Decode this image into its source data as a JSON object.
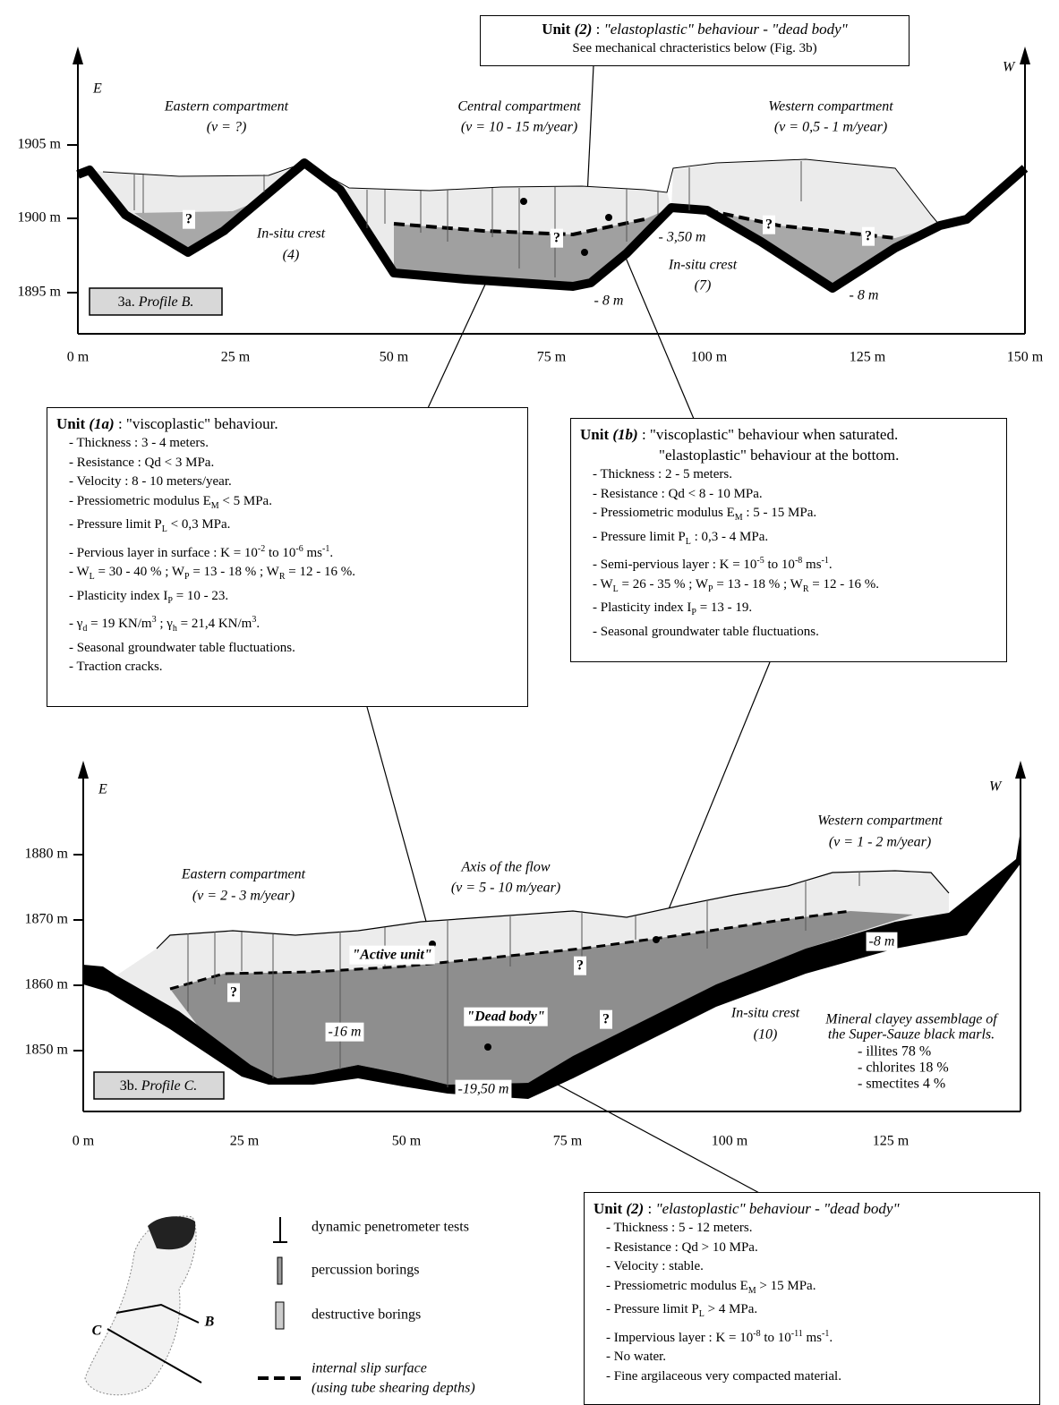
{
  "callout_top": {
    "title": [
      [
        {
          "b": "Unit "
        },
        {
          "bi": "(2)"
        },
        " : ",
        {
          "i": "\"elastoplastic\" behaviour - \"dead body\""
        }
      ]
    ],
    "items": [
      [
        "See mechanical chracteristics below (Fig. 3b)"
      ]
    ]
  },
  "profile_b": {
    "panel_label": [
      "3a. ",
      {
        "i": "Profile B."
      }
    ],
    "directions": [
      "E",
      "W"
    ],
    "x_ticks": [
      "0 m",
      "25 m",
      "50 m",
      "75 m",
      "100 m",
      "125 m",
      "150 m"
    ],
    "y_ticks": [
      "1905 m",
      "1900 m",
      "1895 m"
    ],
    "labels": [
      "Eastern compartment",
      "(v = ?)",
      "Central compartment",
      "(v = 10 - 15 m/year)",
      "Western compartment",
      "(v = 0,5 - 1 m/year)",
      "In-situ crest",
      "(4)",
      "In-situ crest",
      "(7)",
      "- 3,50 m",
      "- 8 m",
      "- 8 m"
    ],
    "unknowns": [
      "?",
      "?",
      "?",
      "?"
    ]
  },
  "unit_1a": {
    "title": [
      [
        {
          "b": "Unit "
        },
        {
          "bi": "(1a)"
        },
        " : \"viscoplastic\" behaviour."
      ]
    ],
    "items": [
      [
        "- Thickness : 3 - 4 meters."
      ],
      [
        "- Resistance : Qd < 3 MPa."
      ],
      [
        "- Velocity : 8 - 10 meters/year."
      ],
      [
        "- Pressiometric modulus  E",
        {
          "sub": "M"
        },
        " < 5 MPa."
      ],
      [
        "- Pressure limit P",
        {
          "sub": "L"
        },
        " < 0,3 MPa."
      ],
      [
        "- Pervious layer in surface : K = 10",
        {
          "sup": "-2"
        },
        " to 10",
        {
          "sup": "-6"
        },
        " ms",
        {
          "sup": "-1"
        },
        "."
      ],
      [
        "- W",
        {
          "sub": "L"
        },
        " = 30 - 40 %  ; W",
        {
          "sub": "P"
        },
        " = 13 - 18 %  ; W",
        {
          "sub": "R"
        },
        " = 12 - 16 %."
      ],
      [
        "- Plasticity index  I",
        {
          "sub": "P"
        },
        " = 10 - 23."
      ],
      [
        "- γ",
        {
          "sub": "d"
        },
        " = 19 KN/m",
        {
          "sup": "3"
        },
        "  ; γ",
        {
          "sub": "h"
        },
        " = 21,4 KN/m",
        {
          "sup": "3"
        },
        "."
      ],
      [
        "- Seasonal groundwater table fluctuations."
      ],
      [
        "- Traction cracks."
      ]
    ]
  },
  "unit_1b": {
    "title": [
      [
        {
          "b": "Unit "
        },
        {
          "bi": "(1b)"
        },
        " : \"viscoplastic\" behaviour when saturated."
      ],
      [
        "\"elastoplastic\" behaviour at the bottom."
      ]
    ],
    "items": [
      [
        "- Thickness : 2 - 5 meters."
      ],
      [
        "- Resistance : Qd < 8 - 10 MPa."
      ],
      [
        "- Pressiometric modulus  E",
        {
          "sub": "M"
        },
        " : 5 - 15 MPa."
      ],
      [
        "- Pressure limit  P",
        {
          "sub": "L"
        },
        " : 0,3 - 4 MPa."
      ],
      [
        "- Semi-pervious layer : K = 10",
        {
          "sup": "-5"
        },
        " to 10",
        {
          "sup": "-8"
        },
        " ms",
        {
          "sup": "-1"
        },
        "."
      ],
      [
        "- W",
        {
          "sub": "L"
        },
        " = 26 - 35 %  ; W",
        {
          "sub": "P"
        },
        " = 13 - 18 %  ; W",
        {
          "sub": "R"
        },
        " = 12 - 16 %."
      ],
      [
        "- Plasticity index  I",
        {
          "sub": "P"
        },
        " = 13 - 19."
      ],
      [
        "- Seasonal groundwater table fluctuations."
      ]
    ]
  },
  "profile_c": {
    "panel_label": [
      "3b. ",
      {
        "i": "Profile C."
      }
    ],
    "directions": [
      "E",
      "W"
    ],
    "x_ticks": [
      "0 m",
      "25 m",
      "50 m",
      "75 m",
      "100 m",
      "125 m"
    ],
    "y_ticks": [
      "1880 m",
      "1870 m",
      "1860 m",
      "1850 m"
    ],
    "labels": [
      "Eastern compartment",
      "(v = 2 - 3 m/year)",
      "Axis of the flow",
      "(v = 5 - 10 m/year)",
      "Western compartment",
      "(v = 1 - 2 m/year)",
      "\"Active unit\"",
      "\"Dead body\"",
      "In-situ crest",
      "(10)",
      "-16 m",
      "-19,50 m",
      "-8 m"
    ],
    "unknowns": [
      "?",
      "?",
      "?"
    ],
    "mineral_note": [
      "Mineral clayey assemblage of",
      "the Super-Sauze black marls.",
      "- illites 78 %",
      "- chlorites 18 %",
      "- smectites 4 %"
    ]
  },
  "legend": {
    "items": [
      "dynamic penetrometer tests",
      "percussion borings",
      "destructive borings",
      "internal slip surface"
    ],
    "slip_note": "(using tube shearing depths)",
    "map_labels": [
      "C",
      "B"
    ]
  },
  "unit_2": {
    "title": [
      [
        {
          "b": "Unit "
        },
        {
          "bi": "(2)"
        },
        " : ",
        {
          "i": "\"elastoplastic\" behaviour - \"dead body\""
        }
      ]
    ],
    "items": [
      [
        "- Thickness : 5 - 12 meters."
      ],
      [
        "- Resistance : Qd > 10 MPa."
      ],
      [
        "- Velocity : stable."
      ],
      [
        "- Pressiometric modulus  E",
        {
          "sub": "M"
        },
        " > 15 MPa."
      ],
      [
        "- Pressure limit  P",
        {
          "sub": "L"
        },
        " > 4 MPa."
      ],
      [
        "- Impervious layer  : K = 10",
        {
          "sup": "-8"
        },
        " to 10",
        {
          "sup": "-11"
        },
        " ms",
        {
          "sup": "-1"
        },
        "."
      ],
      [
        "- No water."
      ],
      [
        "- Fine argilaceous very compacted material."
      ]
    ]
  }
}
